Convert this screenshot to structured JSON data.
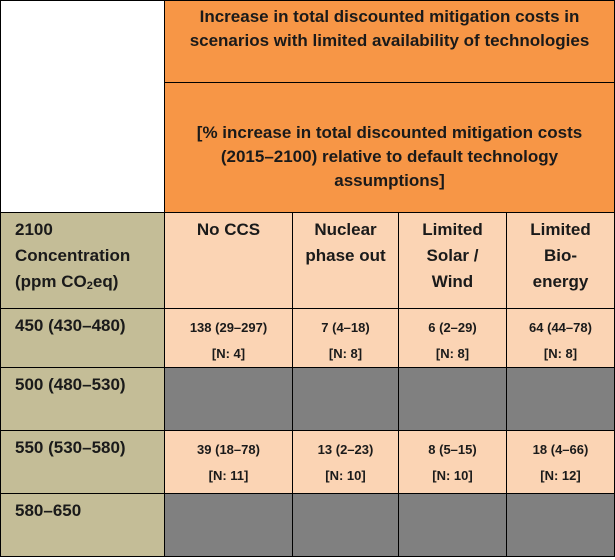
{
  "header": {
    "title": "Increase in total discounted mitigation costs in scenarios with limited availability of technologies",
    "subtitle": "[% increase in total discounted mitigation costs (2015–2100) relative to default technology assumptions]"
  },
  "row_header_title": {
    "line1": "2100",
    "line2": "Concentration",
    "line3_prefix": "(ppm CO",
    "line3_sub": "2",
    "line3_suffix": "eq)"
  },
  "columns": [
    "No CCS",
    "Nuclear phase out",
    "Limited Solar / Wind",
    "Limited Bio-energy"
  ],
  "rows": [
    {
      "label": "450 (430–480)",
      "cells": [
        {
          "value": "138 (29–297)",
          "n": "[N: 4]"
        },
        {
          "value": "7 (4–18)",
          "n": "[N: 8]"
        },
        {
          "value": "6 (2–29)",
          "n": "[N: 8]"
        },
        {
          "value": "64 (44–78)",
          "n": "[N: 8]"
        }
      ]
    },
    {
      "label": "500 (480–530)",
      "cells": []
    },
    {
      "label": "550 (530–580)",
      "cells": [
        {
          "value": "39 (18–78)",
          "n": "[N: 11]"
        },
        {
          "value": "13 (2–23)",
          "n": "[N: 10]"
        },
        {
          "value": "8 (5–15)",
          "n": "[N: 10]"
        },
        {
          "value": "18 (4–66)",
          "n": "[N: 12]"
        }
      ]
    },
    {
      "label": "580–650",
      "cells": []
    }
  ]
}
